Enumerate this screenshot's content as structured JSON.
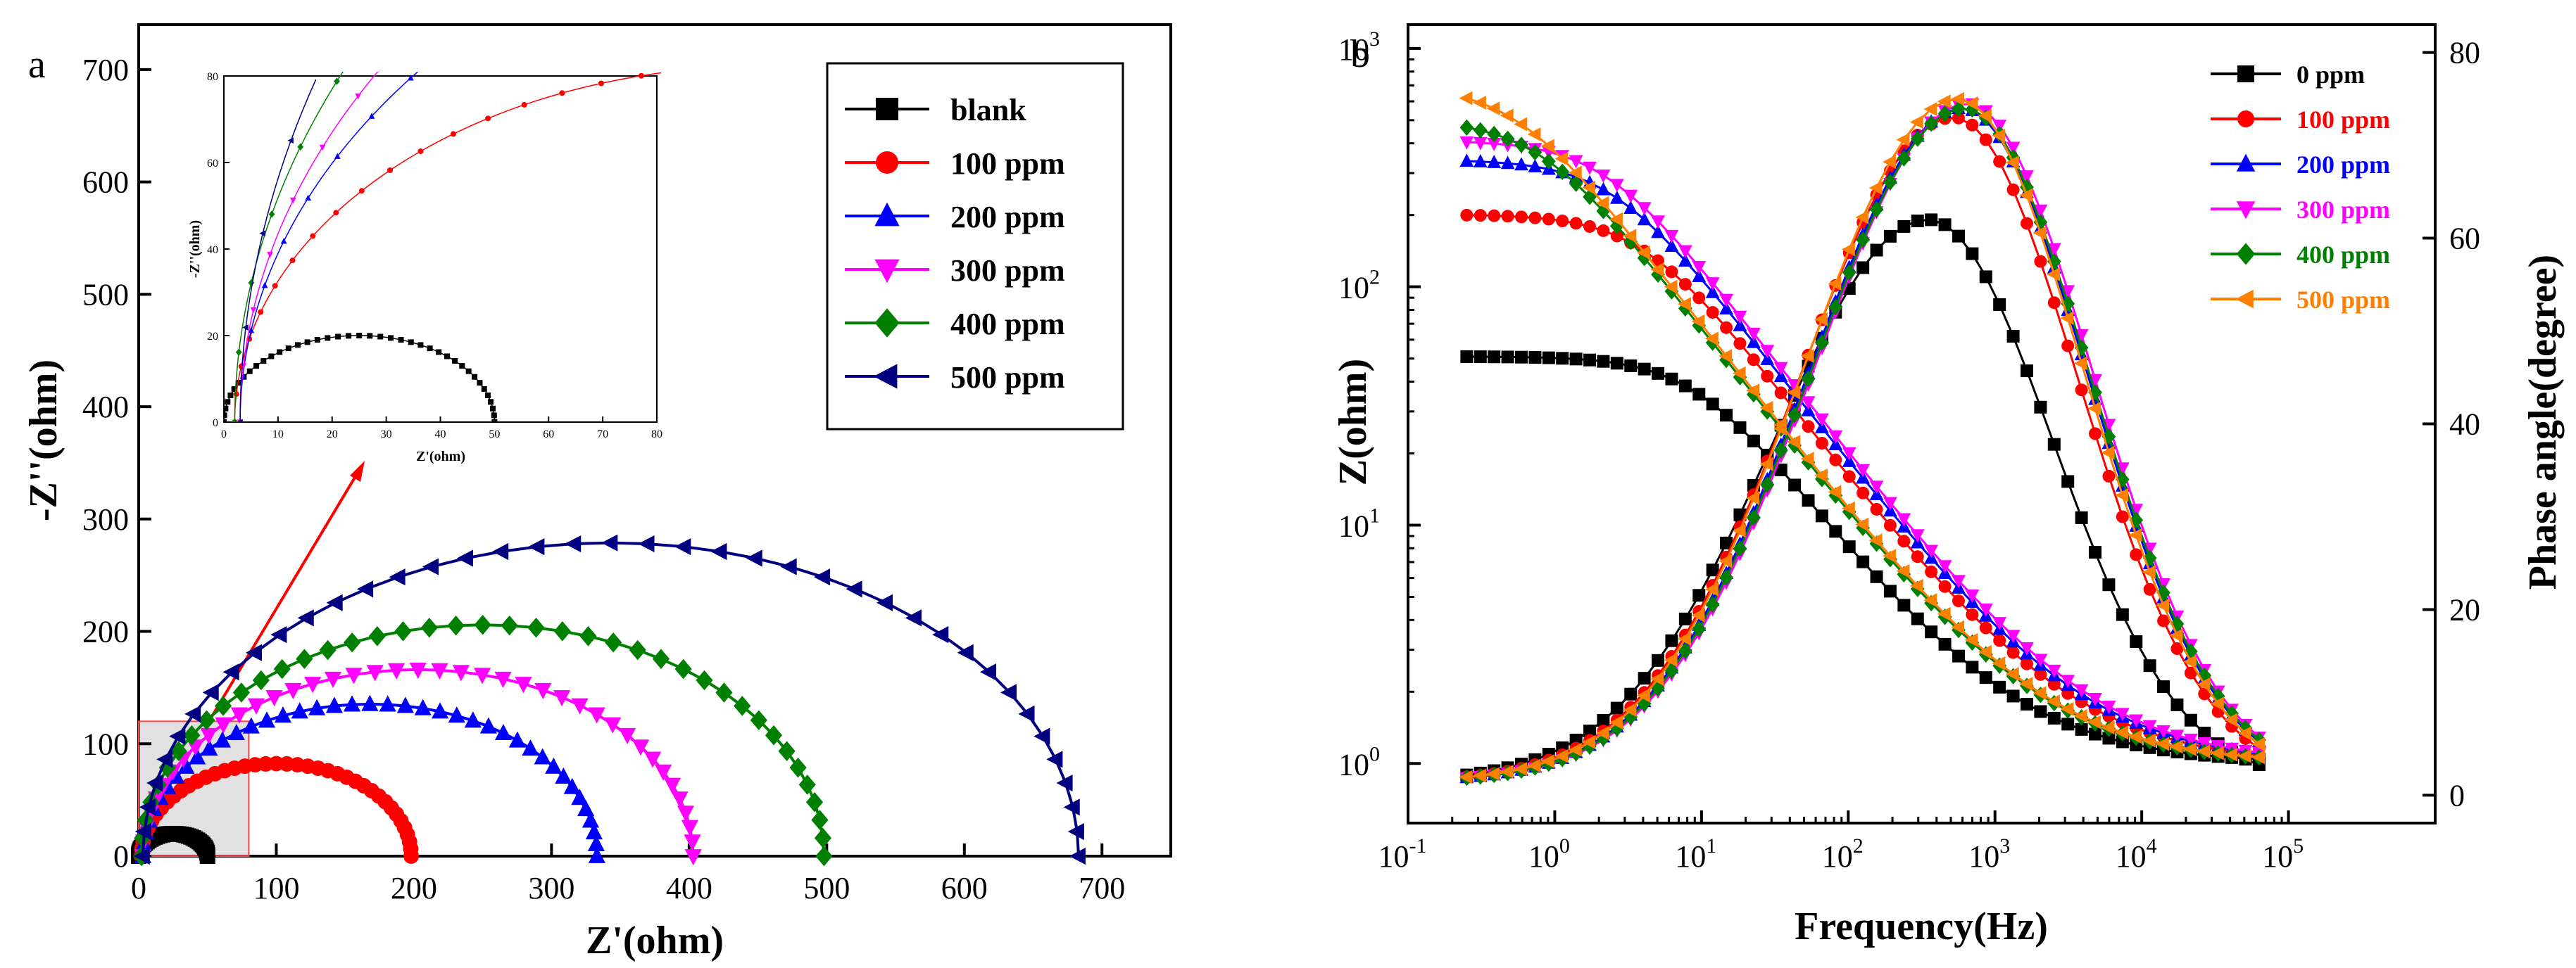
{
  "figure": {
    "panels": [
      "a",
      "b"
    ]
  },
  "chart_data": [
    {
      "panel": "a",
      "type": "scatter",
      "title": "",
      "xlabel": "Z'(ohm)",
      "ylabel": "-Z''(ohm)",
      "xlim": [
        0,
        750
      ],
      "ylim": [
        0,
        740
      ],
      "xticks": [
        0,
        100,
        200,
        300,
        400,
        500,
        600,
        700
      ],
      "yticks": [
        0,
        100,
        200,
        300,
        400,
        500,
        600,
        700
      ],
      "series": [
        {
          "name": "blank",
          "color": "#000000",
          "marker": "square",
          "center": 25,
          "radius": 25,
          "heightRatio": 0.8
        },
        {
          "name": "100 ppm",
          "color": "#ff0000",
          "marker": "circle",
          "center": 100,
          "radius": 98,
          "heightRatio": 0.84
        },
        {
          "name": "200 ppm",
          "color": "#0000ff",
          "marker": "triangle-up",
          "center": 168,
          "radius": 165,
          "heightRatio": 0.82
        },
        {
          "name": "300 ppm",
          "color": "#ff00ff",
          "marker": "triangle-down",
          "center": 203,
          "radius": 200,
          "heightRatio": 0.83
        },
        {
          "name": "400 ppm",
          "color": "#008000",
          "marker": "diamond",
          "center": 250,
          "radius": 248,
          "heightRatio": 0.83
        },
        {
          "name": "500 ppm",
          "color": "#000080",
          "marker": "triangle-left",
          "center": 343,
          "radius": 340,
          "heightRatio": 0.82
        }
      ],
      "legend": [
        "blank",
        "100 ppm",
        "200 ppm",
        "300 ppm",
        "400 ppm",
        "500 ppm"
      ],
      "inset": {
        "xlabel": "Z'(ohm)",
        "ylabel": "-Z''(ohm)",
        "xlim": [
          0,
          80
        ],
        "ylim": [
          0,
          80
        ],
        "xticks": [
          0,
          10,
          20,
          30,
          40,
          50,
          60,
          70,
          80
        ],
        "yticks": [
          0,
          20,
          40,
          60,
          80
        ],
        "zoom_box": {
          "xlim": [
            0,
            80
          ],
          "ylim": [
            0,
            120
          ]
        }
      }
    },
    {
      "panel": "b",
      "type": "line",
      "title": "",
      "xlabel": "Frequency(Hz)",
      "ylabel": "Z(ohm)",
      "y2label": "Phase angle(degree)",
      "xlim_log10": [
        -1,
        6
      ],
      "ylim_log10": [
        -0.25,
        3.1
      ],
      "y2lim": [
        -3,
        83
      ],
      "xticks": [
        "10-1",
        "100",
        "101",
        "102",
        "103",
        "104",
        "105"
      ],
      "yticks": [
        "100",
        "101",
        "102",
        "103"
      ],
      "y2ticks": [
        0,
        20,
        40,
        60,
        80
      ],
      "series": [
        {
          "name": "0 ppm",
          "color": "#000000",
          "marker": "square",
          "R": 50,
          "fc": 9,
          "phasePeak": 62,
          "fPeak": 350
        },
        {
          "name": "100 ppm",
          "color": "#ff0000",
          "marker": "circle",
          "R": 200,
          "fc": 4,
          "phasePeak": 73,
          "fPeak": 520
        },
        {
          "name": "200 ppm",
          "color": "#0000ff",
          "marker": "triangle-up",
          "R": 340,
          "fc": 2.5,
          "phasePeak": 74,
          "fPeak": 600
        },
        {
          "name": "300 ppm",
          "color": "#ff00ff",
          "marker": "triangle-down",
          "R": 410,
          "fc": 2.2,
          "phasePeak": 74.5,
          "fPeak": 650
        },
        {
          "name": "400 ppm",
          "color": "#008000",
          "marker": "diamond",
          "R": 500,
          "fc": 0.8,
          "phasePeak": 74,
          "fPeak": 620
        },
        {
          "name": "500 ppm",
          "color": "#ff8000",
          "marker": "triangle-left",
          "R": 700,
          "fc": 0.55,
          "phasePeak": 75,
          "fPeak": 560
        }
      ],
      "legend": [
        "0 ppm",
        "100 ppm",
        "200 ppm",
        "300 ppm",
        "400 ppm",
        "500 ppm"
      ]
    }
  ]
}
